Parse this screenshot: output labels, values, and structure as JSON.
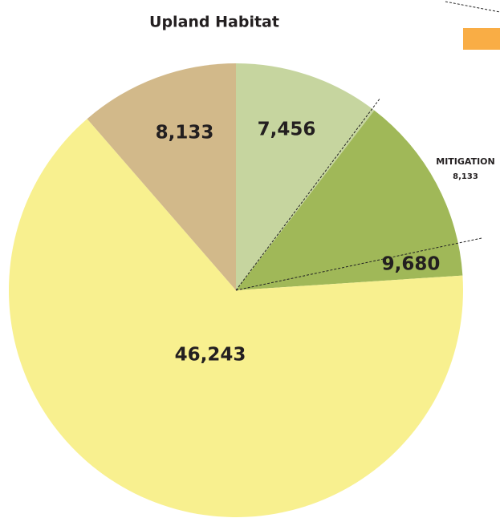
{
  "chart_data": {
    "type": "pie",
    "title": "Upland Habitat",
    "categories": [
      null,
      null,
      null,
      null
    ],
    "values": [
      7456,
      9680,
      46243,
      8133
    ],
    "value_labels": [
      "7,456",
      "9,680",
      "46,243",
      "8,133"
    ],
    "colors": [
      "#c6d59f",
      "#a0b858",
      "#f8f08f",
      "#d2b98a"
    ],
    "annotations": [
      {
        "text": "MITIGATION",
        "value": 8133,
        "value_label": "8,133"
      }
    ]
  }
}
